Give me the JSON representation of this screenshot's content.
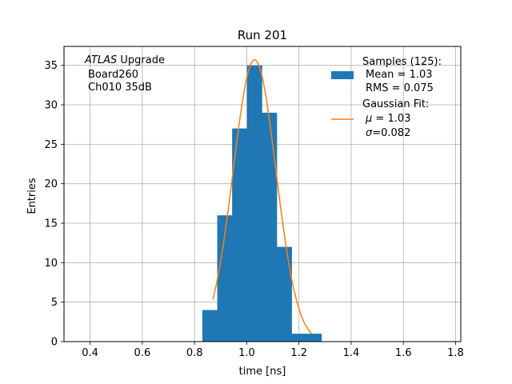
{
  "chart_data": {
    "type": "bar",
    "title": "Run 201",
    "xlabel": "time [ns]",
    "ylabel": "Entries",
    "xlim": [
      0.3,
      1.82
    ],
    "ylim": [
      0,
      37.4
    ],
    "xticks": [
      0.4,
      0.6,
      0.8,
      1.0,
      1.2,
      1.4,
      1.6,
      1.8
    ],
    "xtick_labels": [
      "0.4",
      "0.6",
      "0.8",
      "1.0",
      "1.2",
      "1.4",
      "1.6",
      "1.8"
    ],
    "yticks": [
      0,
      5,
      10,
      15,
      20,
      25,
      30,
      35
    ],
    "ytick_labels": [
      "0",
      "5",
      "10",
      "15",
      "20",
      "25",
      "30",
      "35"
    ],
    "grid": true,
    "histogram": {
      "name": "Samples (125):",
      "color": "#1f77b4",
      "bin_edges": [
        0.83,
        0.887,
        0.944,
        1.001,
        1.058,
        1.115,
        1.172,
        1.229,
        1.286
      ],
      "counts": [
        4,
        16,
        27,
        35,
        29,
        12,
        1,
        1
      ]
    },
    "fit": {
      "name": "Gaussian Fit:",
      "color": "#ff7f0e",
      "amplitude": 35.7,
      "mu": 1.03,
      "sigma": 0.082,
      "x_range": [
        0.87,
        1.25
      ]
    },
    "annotation": {
      "line1_italic": "ATLAS",
      "line1_rest": " Upgrade",
      "line2": "Board260",
      "line3": "Ch010 35dB"
    },
    "legend": {
      "position": "top-right",
      "entries": [
        {
          "kind": "patch",
          "color": "#1f77b4",
          "lines": [
            "Samples (125):",
            "Mean = 1.03",
            "RMS = 0.075"
          ]
        },
        {
          "kind": "line",
          "color": "#ff7f0e",
          "lines": [
            "Gaussian Fit:"
          ],
          "mu_symbol": "μ",
          "mu_value": " = 1.03",
          "sigma_symbol": "σ",
          "sigma_value": "=0.082"
        }
      ]
    }
  }
}
